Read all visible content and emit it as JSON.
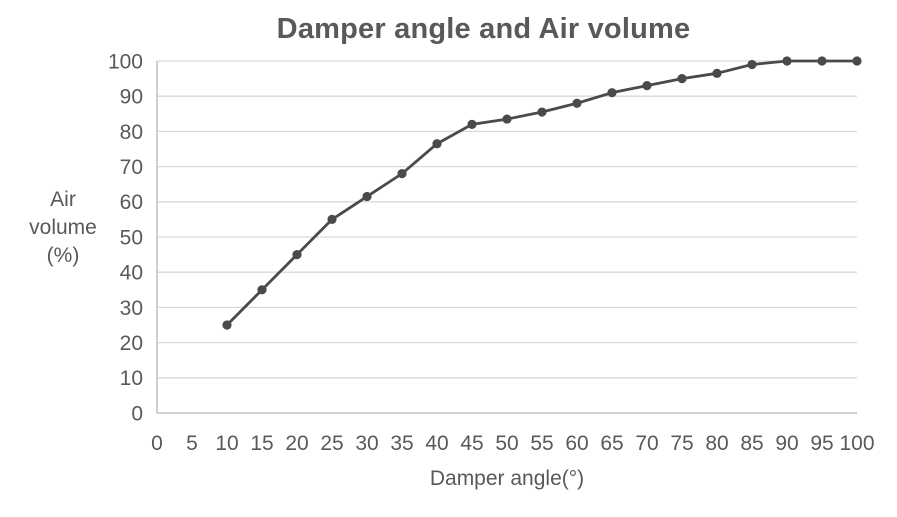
{
  "chart_data": {
    "type": "line",
    "title": "Damper angle and Air volume",
    "xlabel": "Damper angle(°)",
    "ylabel": "Air volume (%)",
    "ylabel_lines": [
      "Air",
      "volume",
      "(%)"
    ],
    "x": [
      10,
      15,
      20,
      25,
      30,
      35,
      40,
      45,
      50,
      55,
      60,
      65,
      70,
      75,
      80,
      85,
      90,
      95,
      100
    ],
    "y": [
      25,
      35,
      45,
      55,
      61.5,
      68,
      76.5,
      82,
      83.5,
      85.5,
      88,
      91,
      93,
      95,
      96.5,
      99,
      100,
      100,
      100
    ],
    "series_name": "Air volume",
    "xlim": [
      0,
      100
    ],
    "ylim": [
      0,
      100
    ],
    "x_ticks": [
      0,
      5,
      10,
      15,
      20,
      25,
      30,
      35,
      40,
      45,
      50,
      55,
      60,
      65,
      70,
      75,
      80,
      85,
      90,
      95,
      100
    ],
    "y_ticks": [
      0,
      10,
      20,
      30,
      40,
      50,
      60,
      70,
      80,
      90,
      100
    ],
    "grid": "horizontal-only",
    "legend": "none",
    "marker": "circle",
    "colors": {
      "series": "#4a4a4a",
      "text": "#595959",
      "gridline": "#d9d9d9",
      "axis": "#bfbfbf",
      "background": "#ffffff"
    }
  }
}
